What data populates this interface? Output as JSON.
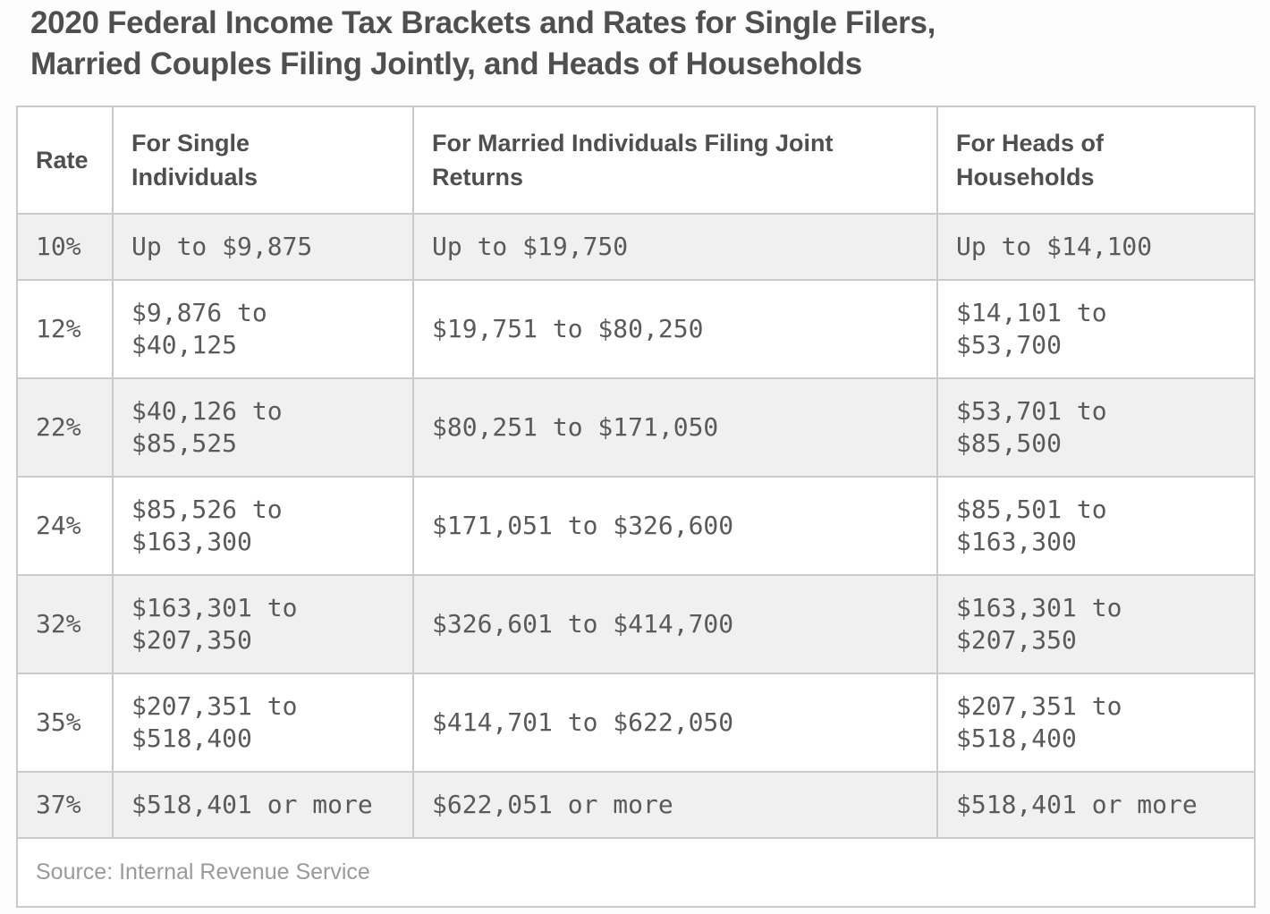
{
  "title": "2020 Federal Income Tax Brackets and Rates for Single Filers,\nMarried Couples Filing Jointly, and Heads of Households",
  "table": {
    "columns": [
      {
        "label": "Rate"
      },
      {
        "label": "For Single\nIndividuals"
      },
      {
        "label": "For Married Individuals Filing Joint\nReturns"
      },
      {
        "label": "For Heads of\nHouseholds"
      }
    ],
    "rows": [
      {
        "rate": "10%",
        "single": "Up to $9,875",
        "married": "Up to $19,750",
        "heads": "Up to $14,100"
      },
      {
        "rate": "12%",
        "single": "$9,876 to\n$40,125",
        "married": "$19,751 to $80,250",
        "heads": "$14,101 to\n$53,700"
      },
      {
        "rate": "22%",
        "single": "$40,126 to\n$85,525",
        "married": "$80,251 to $171,050",
        "heads": "$53,701 to\n$85,500"
      },
      {
        "rate": "24%",
        "single": "$85,526 to\n$163,300",
        "married": "$171,051 to $326,600",
        "heads": "$85,501 to\n$163,300"
      },
      {
        "rate": "32%",
        "single": "$163,301 to\n$207,350",
        "married": "$326,601 to $414,700",
        "heads": "$163,301 to\n$207,350"
      },
      {
        "rate": "35%",
        "single": "$207,351 to\n$518,400",
        "married": "$414,701 to $622,050",
        "heads": "$207,351 to\n$518,400"
      },
      {
        "rate": "37%",
        "single": "$518,401 or more",
        "married": "$622,051 or more",
        "heads": "$518,401 or more"
      }
    ],
    "source": "Source: Internal Revenue Service"
  },
  "colors": {
    "title_text": "#4f4f4f",
    "header_text": "#4f4f4f",
    "cell_text": "#5a5a5b",
    "source_text": "#9a9a9a",
    "row_shaded": "#f0f0f0",
    "row_plain": "#ffffff",
    "border": "#cacaca",
    "page_background": "#fdfdfd"
  }
}
